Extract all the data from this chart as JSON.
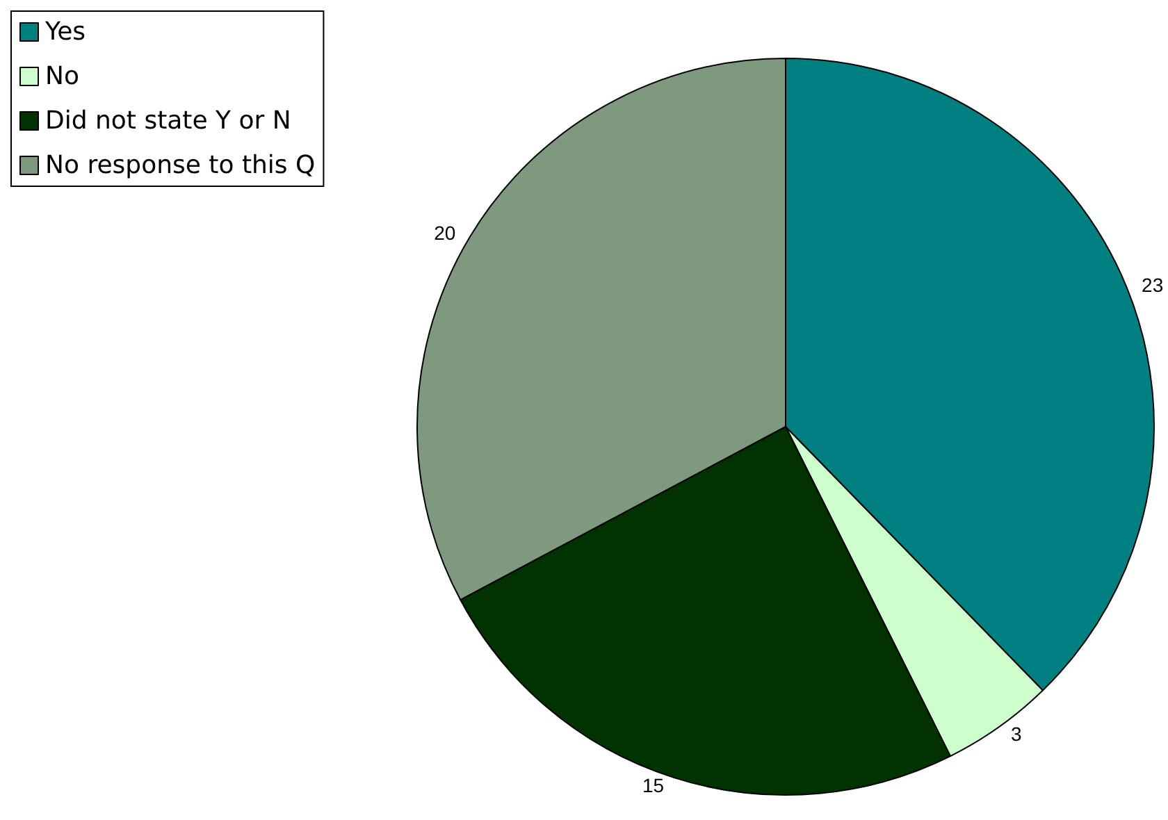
{
  "chart_data": {
    "type": "pie",
    "categories": [
      "Yes",
      "No",
      "Did not state Y or N",
      "No response to this Q"
    ],
    "values": [
      23,
      3,
      15,
      20
    ],
    "colors": [
      "#008080",
      "#ccffcc",
      "#003300",
      "#7f997f"
    ],
    "data_labels": true,
    "legend": "top left"
  }
}
